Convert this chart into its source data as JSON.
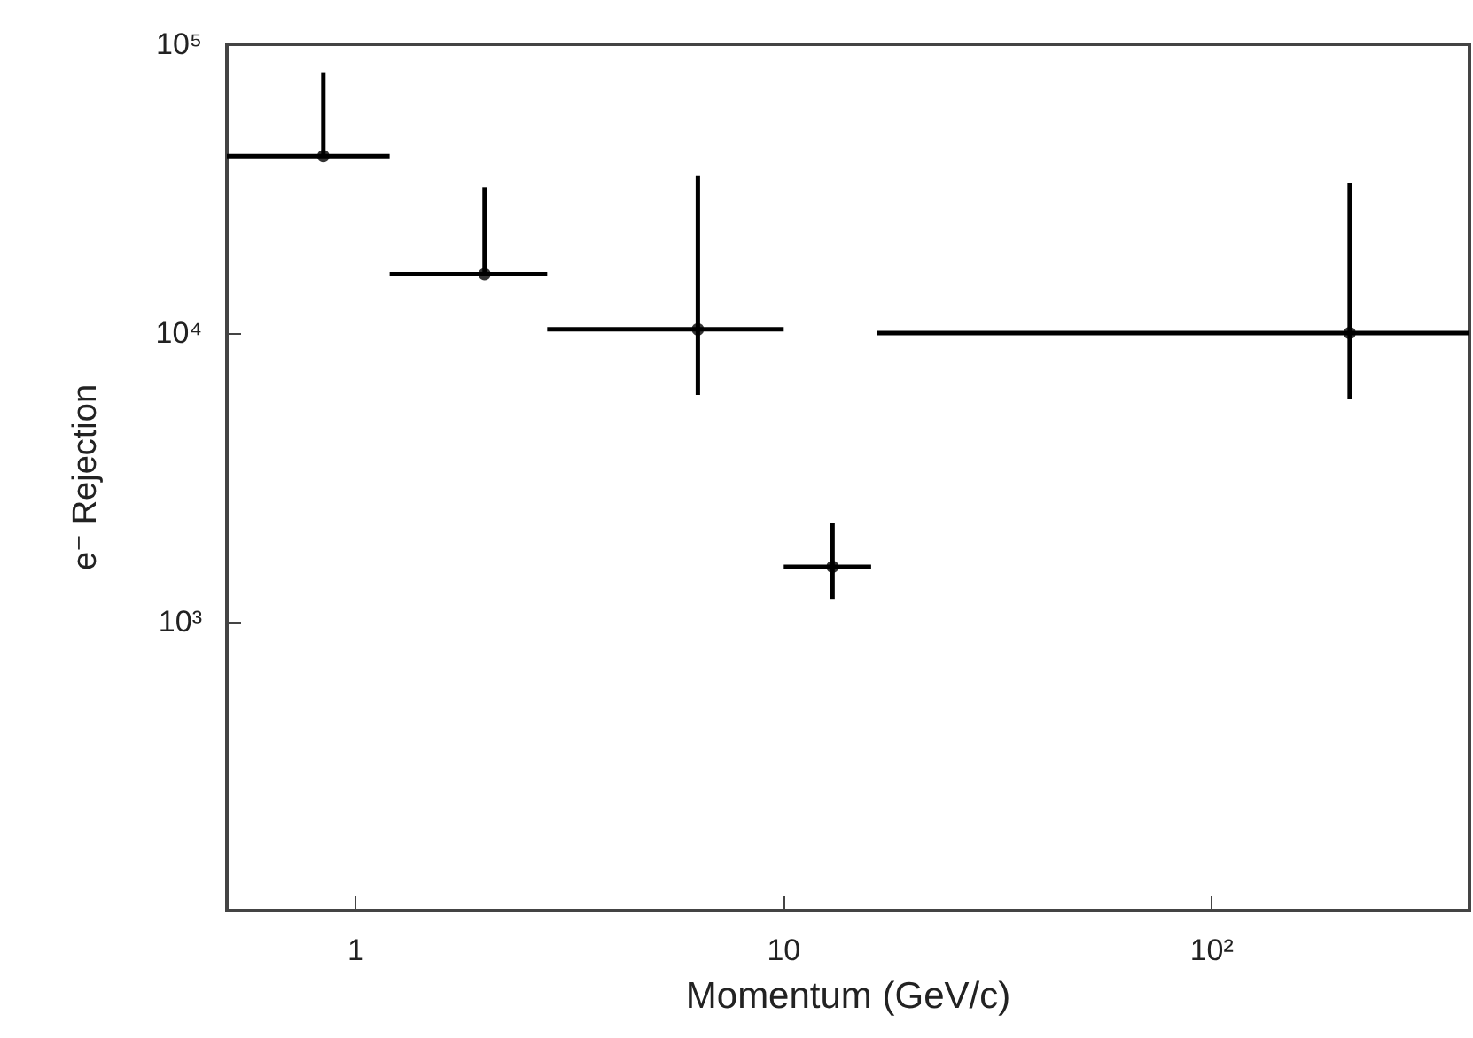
{
  "chart_data": {
    "type": "scatter",
    "xlabel": "Momentum (GeV/c)",
    "ylabel": "e⁻ Rejection",
    "x": [
      0.84,
      2.0,
      6.3,
      13,
      210
    ],
    "series": [
      {
        "color": "#000000",
        "values": [
          41000,
          16000,
          10300,
          1550,
          10000
        ],
        "errors": [
          [
            41000,
            80000
          ],
          [
            16000,
            32000
          ],
          [
            6100,
            35000
          ],
          [
            1200,
            2200
          ],
          [
            5900,
            33000
          ]
        ],
        "xerrors": [
          [
            0.5,
            1.2
          ],
          [
            1.2,
            2.8
          ],
          [
            2.8,
            10
          ],
          [
            10,
            16
          ],
          [
            16.5,
            400
          ]
        ]
      }
    ],
    "log": "xy",
    "xlim": [
      0.5,
      400
    ],
    "ylim": [
      100,
      100000
    ],
    "xticks": [
      1,
      10,
      {
        "value": 100,
        "label": "10²"
      }
    ],
    "yticks": [
      {
        "value": 1000,
        "label": "10³"
      },
      {
        "value": 10000,
        "label": "10⁴"
      },
      {
        "value": 100000,
        "label": "10⁵"
      }
    ],
    "grid": false,
    "marker": "circle"
  }
}
